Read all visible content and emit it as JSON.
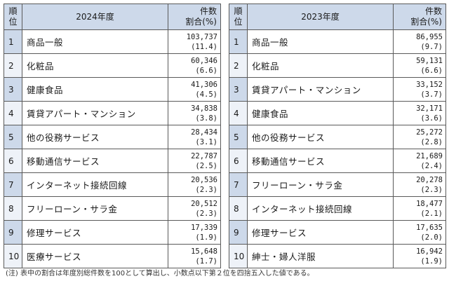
{
  "tables": [
    {
      "header": {
        "rank_line1": "順",
        "rank_line2": "位",
        "year": "2024年度",
        "count_line1": "件数",
        "count_line2": "割合(%)"
      },
      "rows": [
        {
          "rank": "1",
          "name": "商品一般",
          "count": "103,737",
          "share": "(11.4)"
        },
        {
          "rank": "2",
          "name": "化粧品",
          "count": "60,346",
          "share": "(6.6)"
        },
        {
          "rank": "3",
          "name": "健康食品",
          "count": "41,306",
          "share": "(4.5)"
        },
        {
          "rank": "4",
          "name": "賃貸アパート・マンション",
          "count": "34,838",
          "share": "(3.8)"
        },
        {
          "rank": "5",
          "name": "他の役務サービス",
          "count": "28,434",
          "share": "(3.1)"
        },
        {
          "rank": "6",
          "name": "移動通信サービス",
          "count": "22,787",
          "share": "(2.5)"
        },
        {
          "rank": "7",
          "name": "インターネット接続回線",
          "count": "20,536",
          "share": "(2.3)"
        },
        {
          "rank": "8",
          "name": "フリーローン・サラ金",
          "count": "20,512",
          "share": "(2.3)"
        },
        {
          "rank": "9",
          "name": "修理サービス",
          "count": "17,339",
          "share": "(1.9)"
        },
        {
          "rank": "10",
          "name": "医療サービス",
          "count": "15,648",
          "share": "(1.7)"
        }
      ]
    },
    {
      "header": {
        "rank_line1": "順",
        "rank_line2": "位",
        "year": "2023年度",
        "count_line1": "件数",
        "count_line2": "割合(%)"
      },
      "rows": [
        {
          "rank": "1",
          "name": "商品一般",
          "count": "86,955",
          "share": "(9.7)"
        },
        {
          "rank": "2",
          "name": "化粧品",
          "count": "59,131",
          "share": "(6.6)"
        },
        {
          "rank": "3",
          "name": "賃貸アパート・マンション",
          "count": "33,152",
          "share": "(3.7)"
        },
        {
          "rank": "4",
          "name": "健康食品",
          "count": "32,171",
          "share": "(3.6)"
        },
        {
          "rank": "5",
          "name": "他の役務サービス",
          "count": "25,272",
          "share": "(2.8)"
        },
        {
          "rank": "6",
          "name": "移動通信サービス",
          "count": "21,689",
          "share": "(2.4)"
        },
        {
          "rank": "7",
          "name": "フリーローン・サラ金",
          "count": "20,278",
          "share": "(2.3)"
        },
        {
          "rank": "8",
          "name": "インターネット接続回線",
          "count": "18,477",
          "share": "(2.1)"
        },
        {
          "rank": "9",
          "name": "修理サービス",
          "count": "17,635",
          "share": "(2.0)"
        },
        {
          "rank": "10",
          "name": "紳士・婦人洋服",
          "count": "16,942",
          "share": "(1.9)"
        }
      ]
    }
  ],
  "note": "(注) 表中の割合は年度別総件数を100として算出し、小数点以下第２位を四捨五入した値である。",
  "colors": {
    "header_bg": "#cdd9ea",
    "rank_bg_alt": "#eef2f8",
    "border": "#5a5a5a"
  }
}
